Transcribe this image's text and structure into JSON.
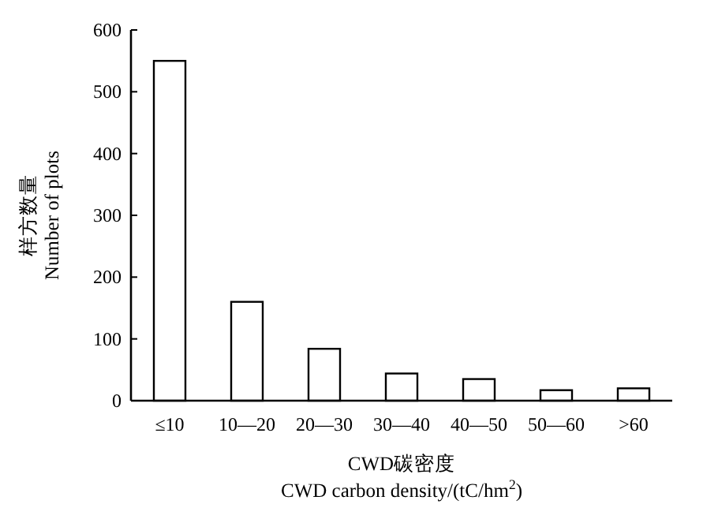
{
  "chart_data": {
    "type": "bar",
    "xlabel": "CWD碳密度\nCWD carbon density/(tC/hm$^{2}$)",
    "ylabel": "样方数量\nNumber of plots",
    "categories": [
      "≤10",
      "10—20",
      "20—30",
      "30—40",
      "40—50",
      "50—60",
      ">60"
    ],
    "values": [
      550,
      160,
      84,
      44,
      35,
      17,
      20
    ],
    "color": "#ffffff",
    "ylim": [
      0,
      600
    ],
    "yticks": [
      0,
      100,
      200,
      300,
      400,
      500,
      600
    ],
    "grid": false
  }
}
